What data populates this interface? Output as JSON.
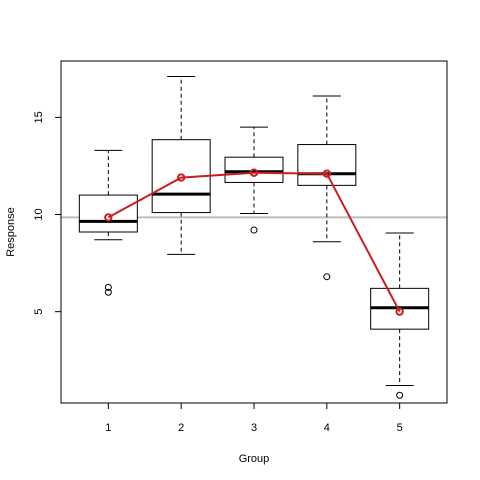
{
  "chart_data": {
    "type": "box",
    "xlabel": "Group",
    "ylabel": "Response",
    "categories": [
      "1",
      "2",
      "3",
      "4",
      "5"
    ],
    "xlim": [
      0.35,
      5.65
    ],
    "ylim": [
      0.3,
      17.9
    ],
    "y_ticks": [
      5,
      10,
      15
    ],
    "boxes": [
      {
        "group": "1",
        "whisker_low": 8.7,
        "q1": 9.1,
        "median": 9.65,
        "q3": 11.0,
        "whisker_high": 13.3,
        "outliers": [
          6.0,
          6.25
        ]
      },
      {
        "group": "2",
        "whisker_low": 7.95,
        "q1": 10.1,
        "median": 11.05,
        "q3": 13.85,
        "whisker_high": 17.1,
        "outliers": []
      },
      {
        "group": "3",
        "whisker_low": 10.05,
        "q1": 11.65,
        "median": 12.2,
        "q3": 12.95,
        "whisker_high": 14.5,
        "outliers": [
          9.2
        ]
      },
      {
        "group": "4",
        "whisker_low": 8.6,
        "q1": 11.5,
        "median": 12.1,
        "q3": 13.6,
        "whisker_high": 16.1,
        "outliers": [
          6.8
        ]
      },
      {
        "group": "5",
        "whisker_low": 1.2,
        "q1": 4.1,
        "median": 5.2,
        "q3": 6.2,
        "whisker_high": 9.05,
        "outliers": [
          0.7
        ]
      }
    ],
    "mean_line": {
      "color": "#c81e1e",
      "values": [
        9.85,
        11.9,
        12.15,
        12.1,
        5.0
      ]
    },
    "reference_line": {
      "y": 9.85,
      "color": "#bebebe"
    }
  }
}
